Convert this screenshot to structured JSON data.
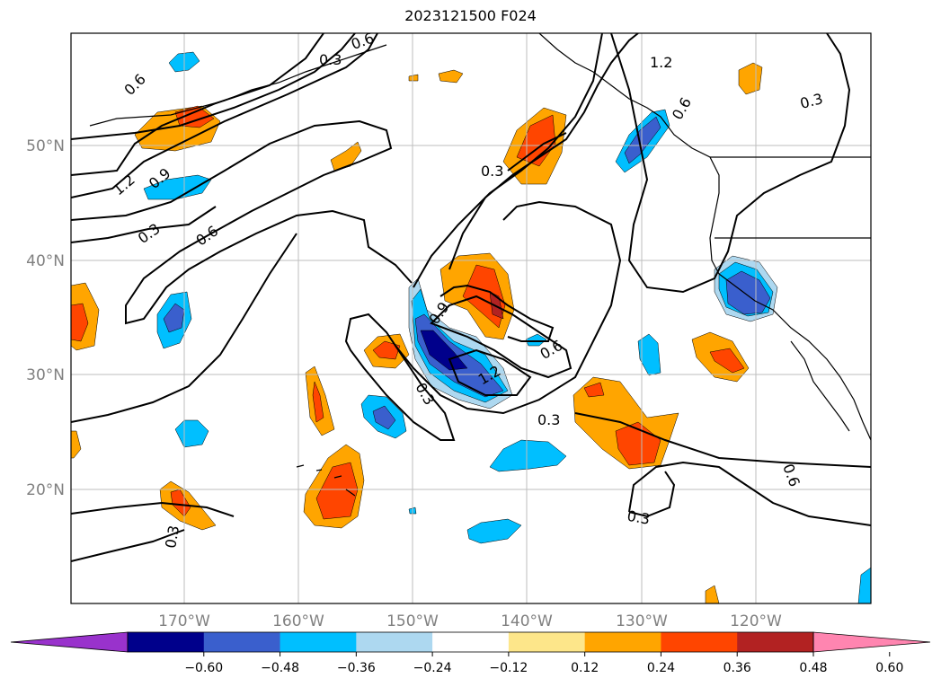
{
  "title": "2023121500 F024",
  "map": {
    "lat_labels": [
      "50°N",
      "40°N",
      "30°N",
      "20°N"
    ],
    "lon_labels": [
      "170°W",
      "160°W",
      "150°W",
      "140°W",
      "130°W",
      "120°W"
    ]
  },
  "contour_labels": [
    "0.6",
    "0.3",
    "1.2",
    "0.9",
    "0.3",
    "0.6",
    "0.3",
    "1.2",
    "0.6",
    "0.3",
    "0.9",
    "0.6",
    "1.2",
    "0.3",
    "0.3",
    "0.3",
    "0.6",
    "0.3",
    "0.6"
  ],
  "colorbar": {
    "ticks": [
      "−0.60",
      "−0.48",
      "−0.36",
      "−0.24",
      "−0.12",
      "0.12",
      "0.24",
      "0.36",
      "0.48",
      "0.60"
    ],
    "colors": [
      "#9932cc",
      "#00008b",
      "#3a5fcd",
      "#00bfff",
      "#add8f0",
      "#ffffff",
      "#fde68a",
      "#ffa500",
      "#ff4500",
      "#b22222",
      "#ff85b0"
    ]
  }
}
